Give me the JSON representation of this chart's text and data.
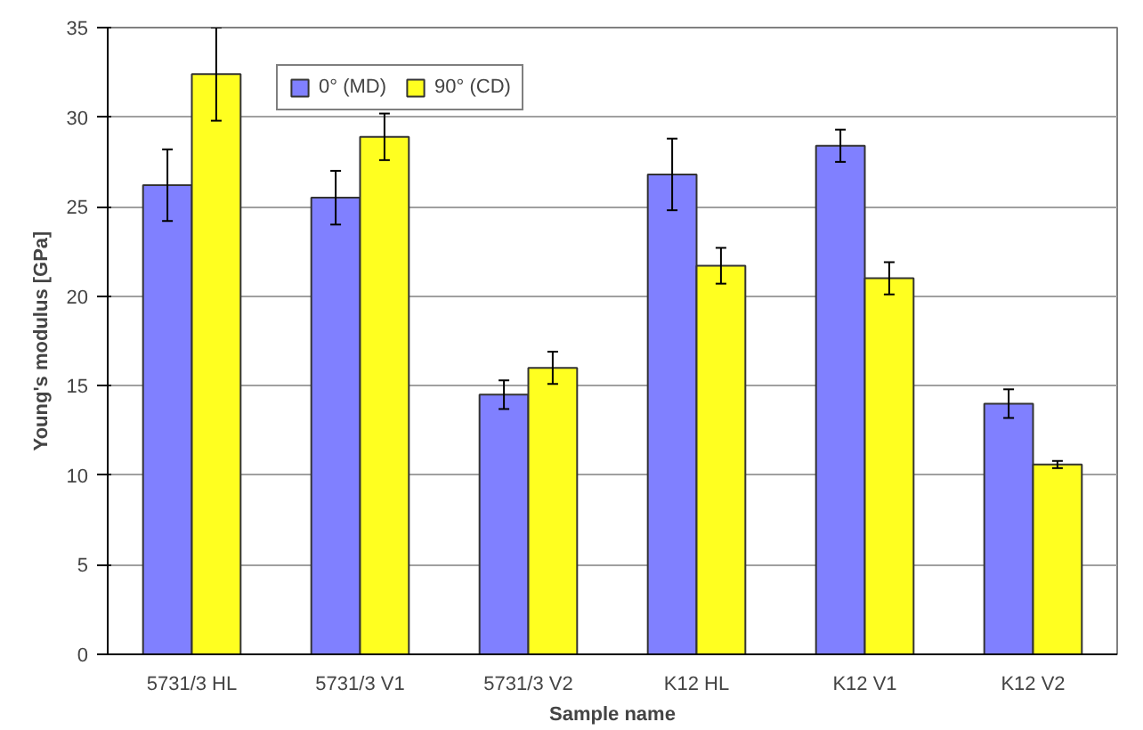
{
  "chart_data": {
    "type": "bar",
    "xlabel": "Sample name",
    "ylabel": "Young's modulus [GPa]",
    "categories": [
      "5731/3 HL",
      "5731/3 V1",
      "5731/3 V2",
      "K12 HL",
      "K12 V1",
      "K12 V2"
    ],
    "series": [
      {
        "name": "0° (MD)",
        "color": "#8080ff",
        "values": [
          26.2,
          25.5,
          14.5,
          26.8,
          28.4,
          14.0
        ],
        "errors": [
          2.0,
          1.5,
          0.8,
          2.0,
          0.9,
          0.8
        ]
      },
      {
        "name": "90° (CD)",
        "color": "#ffff20",
        "values": [
          32.4,
          28.9,
          16.0,
          21.7,
          21.0,
          10.6
        ],
        "errors": [
          2.6,
          1.3,
          0.9,
          1.0,
          0.9,
          0.2
        ]
      }
    ],
    "ylim": [
      0,
      35
    ],
    "yticks": [
      0,
      5,
      10,
      15,
      20,
      25,
      30,
      35
    ],
    "grid": "y",
    "legend": "top"
  }
}
